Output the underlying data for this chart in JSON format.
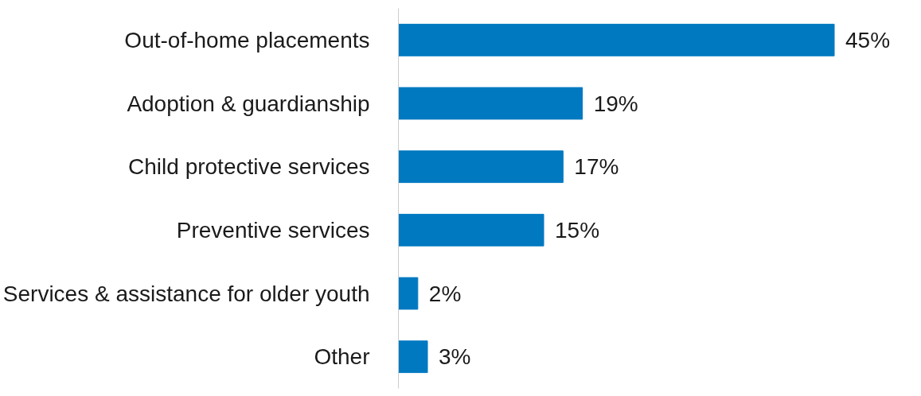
{
  "chart_data": {
    "type": "bar",
    "orientation": "horizontal",
    "categories": [
      "Out-of-home placements",
      "Adoption & guardianship",
      "Child protective services",
      "Preventive services",
      "Services & assistance for older youth",
      "Other"
    ],
    "values": [
      45,
      19,
      17,
      15,
      2,
      3
    ],
    "value_labels": [
      "45%",
      "19%",
      "17%",
      "15%",
      "2%",
      "3%"
    ],
    "color": "#0079c1",
    "grid": false
  }
}
